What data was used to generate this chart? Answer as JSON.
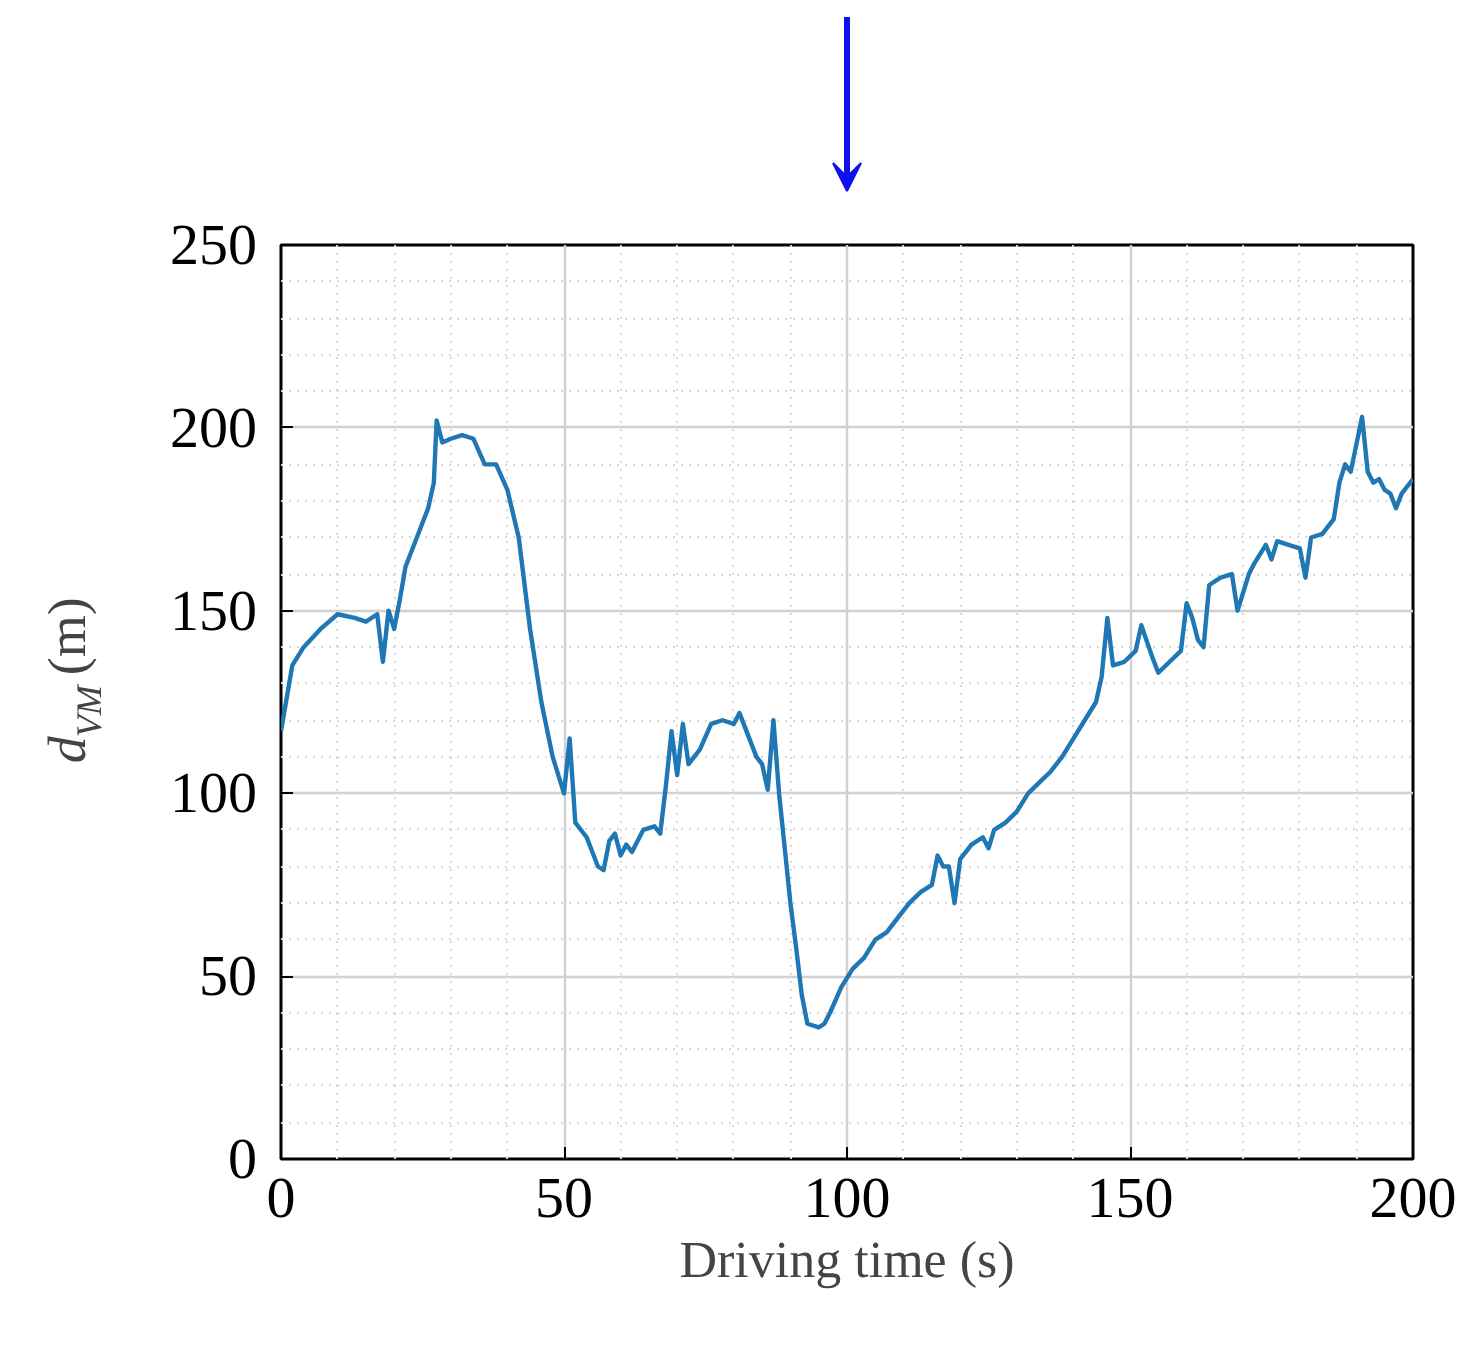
{
  "chart_data": {
    "type": "line",
    "xlabel": "Driving time (s)",
    "ylabel": "d$_{VM}$ (m)",
    "xlim": [
      0,
      200
    ],
    "xticks": [
      0,
      50,
      100,
      150,
      200
    ],
    "ylim": [
      0,
      250
    ],
    "yticks": [
      0,
      50,
      100,
      150,
      200,
      250
    ],
    "grid": true,
    "series": [
      {
        "color": "#1f77b4",
        "x": [
          0,
          2,
          4,
          7,
          10,
          13,
          15,
          17,
          18,
          19,
          20,
          21,
          22,
          24,
          26,
          27,
          27.5,
          28.5,
          30,
          32,
          34,
          36,
          38,
          40,
          42,
          44,
          46,
          48,
          50,
          51,
          52,
          54,
          56,
          57,
          58,
          59,
          60,
          61,
          62,
          64,
          66,
          67,
          68,
          69,
          70,
          71,
          72,
          73,
          74,
          76,
          78,
          80,
          81,
          82,
          84,
          85,
          86,
          87,
          88,
          89,
          90,
          91,
          92,
          93,
          95,
          96,
          97,
          99,
          101,
          103,
          105,
          107,
          109,
          111,
          113,
          115,
          116,
          117,
          118,
          119,
          120,
          122,
          124,
          125,
          126,
          128,
          130,
          132,
          134,
          136,
          138,
          140,
          142,
          144,
          145,
          146,
          147,
          149,
          151,
          152,
          154,
          155,
          157,
          159,
          160,
          161,
          162,
          163,
          164,
          166,
          168,
          169,
          171,
          172,
          174,
          175,
          176,
          178,
          180,
          181,
          182,
          184,
          186,
          187,
          188,
          189,
          191,
          192,
          193,
          194,
          195,
          196,
          197,
          198,
          200
        ],
        "values": [
          117,
          135,
          140,
          145,
          149,
          148,
          147,
          149,
          136,
          150,
          145,
          153,
          162,
          170,
          178,
          185,
          202,
          196,
          197,
          198,
          197,
          190,
          190,
          183,
          170,
          145,
          125,
          110,
          100,
          115,
          92,
          88,
          80,
          79,
          87,
          89,
          83,
          86,
          84,
          90,
          91,
          89,
          102,
          117,
          105,
          119,
          108,
          110,
          112,
          119,
          120,
          119,
          122,
          118,
          110,
          108,
          101,
          120,
          100,
          85,
          70,
          58,
          45,
          37,
          36,
          37,
          40,
          47,
          52,
          55,
          60,
          62,
          66,
          70,
          73,
          75,
          83,
          80,
          80,
          70,
          82,
          86,
          88,
          85,
          90,
          92,
          95,
          100,
          103,
          106,
          110,
          115,
          120,
          125,
          132,
          148,
          135,
          136,
          139,
          146,
          137,
          133,
          136,
          139,
          152,
          148,
          142,
          140,
          157,
          159,
          160,
          150,
          160,
          163,
          168,
          164,
          169,
          168,
          167,
          159,
          170,
          171,
          175,
          185,
          190,
          188,
          203,
          188,
          185,
          186,
          183,
          182,
          178,
          182,
          186
        ]
      }
    ]
  }
}
